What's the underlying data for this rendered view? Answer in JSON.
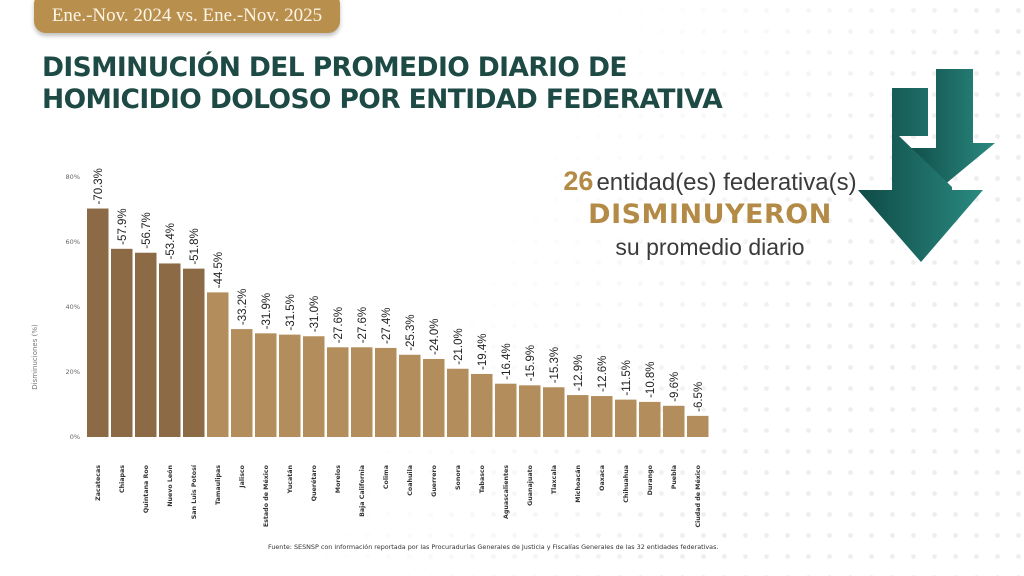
{
  "header": {
    "period": "Ene.-Nov. 2024 vs. Ene.-Nov. 2025",
    "title_line1": "DISMINUCIÓN DEL PROMEDIO DIARIO DE",
    "title_line2": "HOMICIDIO DOLOSO POR ENTIDAD FEDERATIVA"
  },
  "summary": {
    "count": "26",
    "line1_rest": "entidad(es) federativa(s)",
    "line2": "DISMINUYERON",
    "line3": "su promedio diario",
    "icon": "double-down-arrow-icon"
  },
  "source": "Fuente: SESNSP con información reportada por las Procuradurías Generales de Justicia y Fiscalías Generales de las 32 entidades federativas.",
  "colors": {
    "title": "#1d4a44",
    "accent_gold": "#b38a46",
    "bar_dark": "#8b6a45",
    "bar_light": "#b38d5c",
    "arrow_dark": "#0f4a46",
    "arrow_light": "#2a8a80"
  },
  "chart_data": {
    "type": "bar",
    "title": "",
    "xlabel": "",
    "ylabel": "Disminuciones (%)",
    "ylim": [
      0,
      80
    ],
    "yticks": [
      0,
      20,
      40,
      60,
      80
    ],
    "ytick_labels": [
      "0%",
      "20%",
      "40%",
      "60%",
      "80%"
    ],
    "grid": false,
    "categories": [
      "Zacatecas",
      "Chiapas",
      "Quintana Roo",
      "Nuevo León",
      "San Luis Potosí",
      "Tamaulipas",
      "Jalisco",
      "Estado de México",
      "Yucatán",
      "Querétaro",
      "Morelos",
      "Baja California",
      "Colima",
      "Coahuila",
      "Guerrero",
      "Sonora",
      "Tabasco",
      "Aguascalientes",
      "Guanajuato",
      "Tlaxcala",
      "Michoacán",
      "Oaxaca",
      "Chihuahua",
      "Durango",
      "Puebla",
      "Ciudad de México"
    ],
    "values": [
      70.3,
      57.9,
      56.7,
      53.4,
      51.8,
      44.5,
      33.2,
      31.9,
      31.5,
      31.0,
      27.6,
      27.6,
      27.4,
      25.3,
      24.0,
      21.0,
      19.4,
      16.4,
      15.9,
      15.3,
      12.9,
      12.6,
      11.5,
      10.8,
      9.6,
      6.5
    ],
    "data_labels": [
      "-70.3%",
      "-57.9%",
      "-56.7%",
      "-53.4%",
      "-51.8%",
      "-44.5%",
      "-33.2%",
      "-31.9%",
      "-31.5%",
      "-31.0%",
      "-27.6%",
      "-27.6%",
      "-27.4%",
      "-25.3%",
      "-24.0%",
      "-21.0%",
      "-19.4%",
      "-16.4%",
      "-15.9%",
      "-15.3%",
      "-12.9%",
      "-12.6%",
      "-11.5%",
      "-10.8%",
      "-9.6%",
      "-6.5%"
    ],
    "highlight_top_n": 5
  }
}
